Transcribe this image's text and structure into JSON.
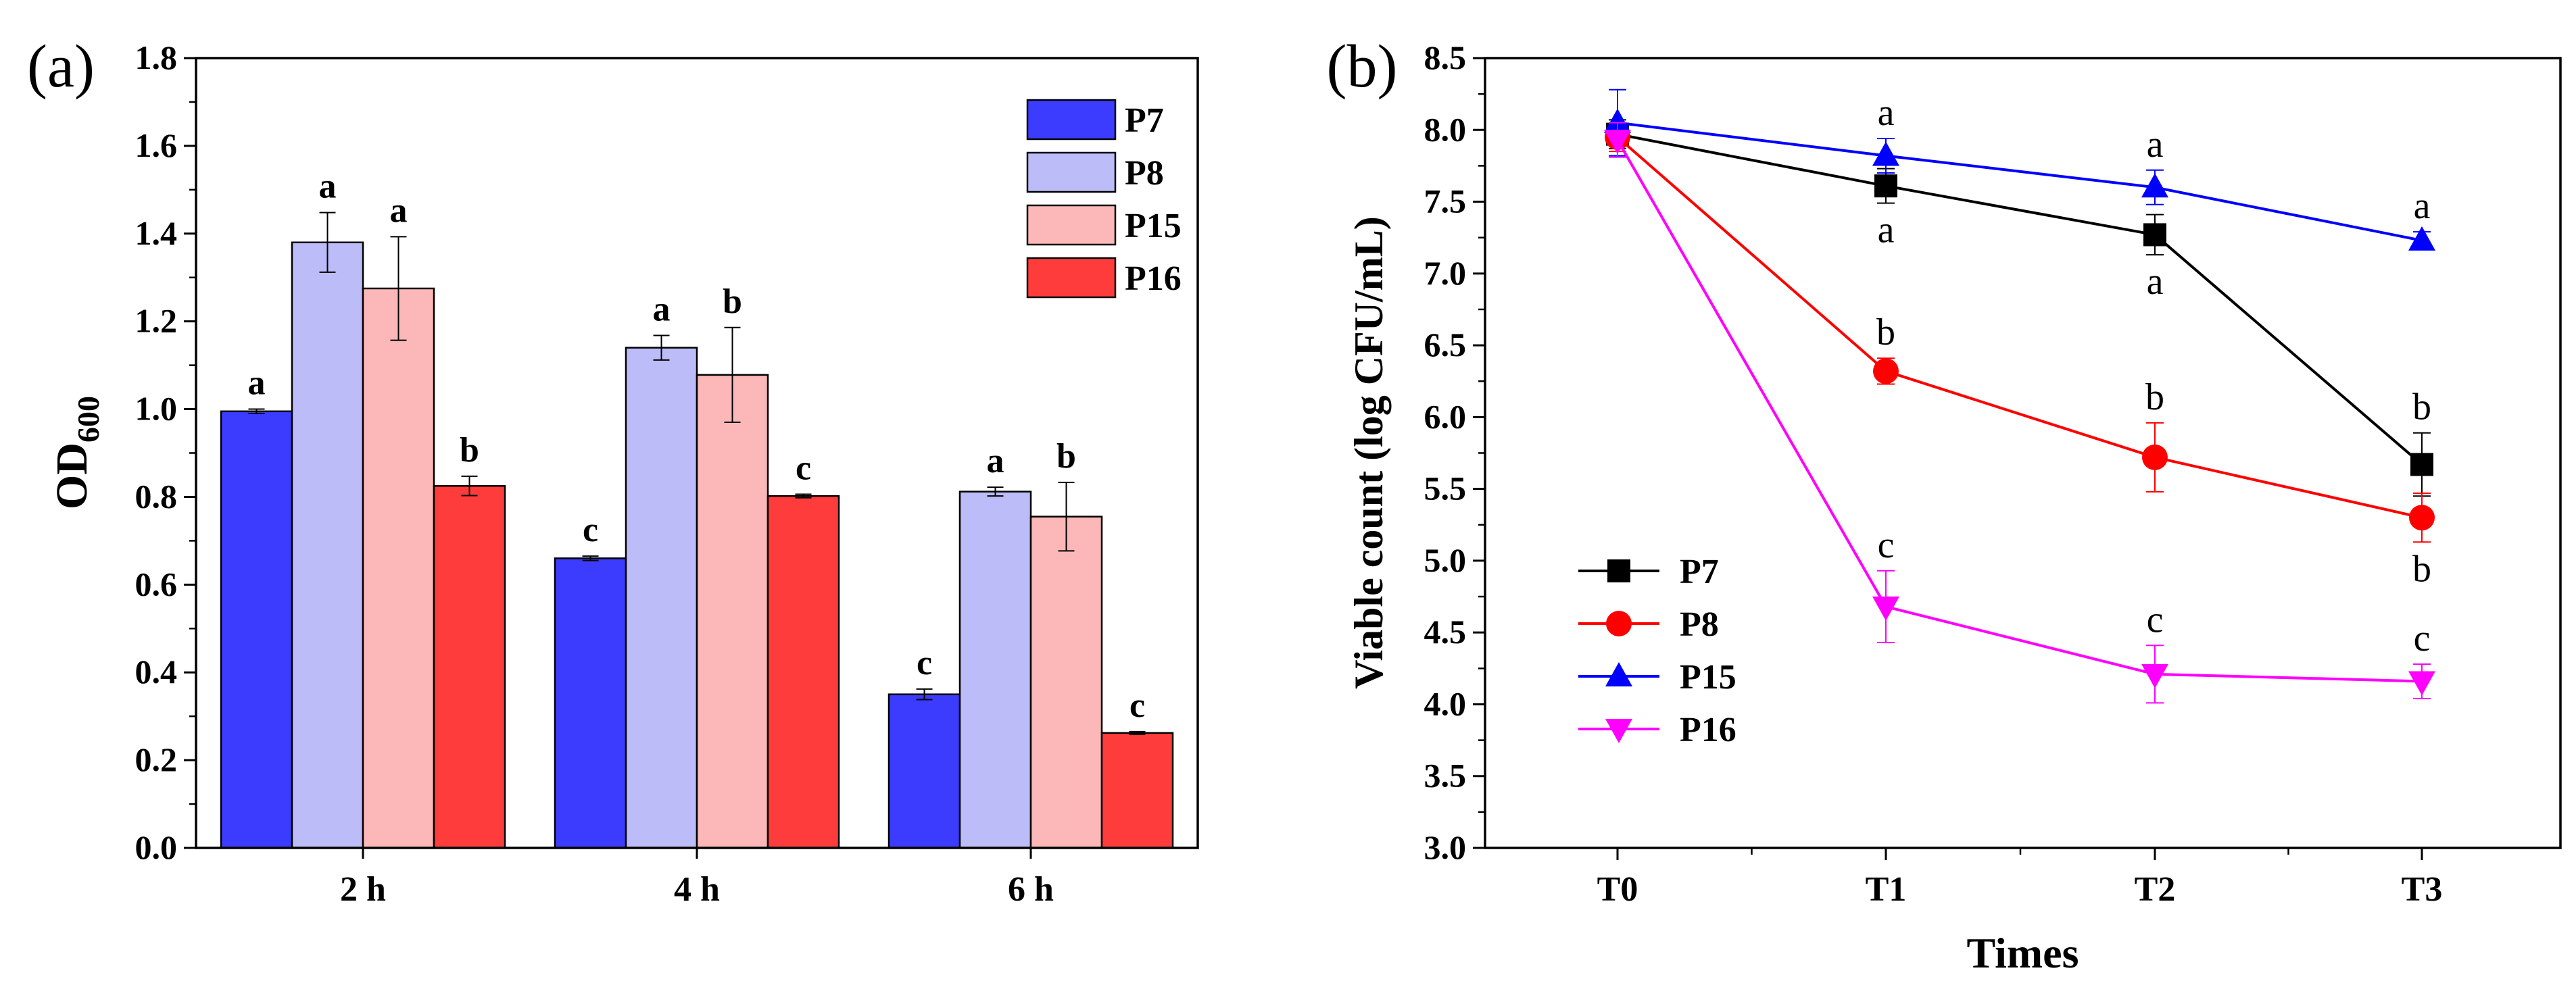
{
  "chart_data": [
    {
      "panel_label": "(a)",
      "type": "bar",
      "categories": [
        "2 h",
        "4 h",
        "6 h"
      ],
      "ylabel_main": "OD",
      "ylabel_sub": "600",
      "ylim": [
        0,
        1.8
      ],
      "yticks": [
        "0.0",
        "0.2",
        "0.4",
        "0.6",
        "0.8",
        "1.0",
        "1.2",
        "1.4",
        "1.6",
        "1.8"
      ],
      "series": [
        {
          "name": "P7",
          "color": "#3c3cff",
          "values": [
            0.995,
            0.66,
            0.35
          ],
          "errors": [
            0.005,
            0.005,
            0.012
          ],
          "labels": [
            "a",
            "c",
            "c"
          ]
        },
        {
          "name": "P8",
          "color": "#bcbcf8",
          "values": [
            1.38,
            1.14,
            0.812
          ],
          "errors": [
            0.068,
            0.028,
            0.01
          ],
          "labels": [
            "a",
            "a",
            "a"
          ]
        },
        {
          "name": "P15",
          "color": "#fcb8b8",
          "values": [
            1.275,
            1.078,
            0.755
          ],
          "errors": [
            0.118,
            0.108,
            0.078
          ],
          "labels": [
            "a",
            "b",
            "b"
          ]
        },
        {
          "name": "P16",
          "color": "#ff3c3c",
          "values": [
            0.825,
            0.802,
            0.262
          ],
          "errors": [
            0.022,
            0.004,
            0.003
          ],
          "labels": [
            "b",
            "c",
            "c"
          ]
        }
      ]
    },
    {
      "panel_label": "(b)",
      "type": "line",
      "x": [
        "T0",
        "T1",
        "T2",
        "T3"
      ],
      "xlabel": "Times",
      "ylabel": "Viable count (log CFU/mL)",
      "ylim": [
        3.0,
        8.5
      ],
      "yticks": [
        "3.0",
        "3.5",
        "4.0",
        "4.5",
        "5.0",
        "5.5",
        "6.0",
        "6.5",
        "7.0",
        "7.5",
        "8.0",
        "8.5"
      ],
      "series": [
        {
          "name": "P7",
          "color": "#000000",
          "marker": "square",
          "values": [
            7.97,
            7.61,
            7.27,
            5.67
          ],
          "errors": [
            0.1,
            0.12,
            0.14,
            0.22
          ],
          "labels": [
            "",
            "a",
            "a",
            "b"
          ],
          "label_pos": [
            "",
            "below",
            "below",
            "above"
          ]
        },
        {
          "name": "P8",
          "color": "#ff0000",
          "marker": "circle",
          "values": [
            7.95,
            6.32,
            5.72,
            5.3
          ],
          "errors": [
            0.1,
            0.09,
            0.24,
            0.17
          ],
          "labels": [
            "",
            "b",
            "b",
            "b"
          ],
          "label_pos": [
            "",
            "above",
            "above",
            "below"
          ]
        },
        {
          "name": "P15",
          "color": "#0000ff",
          "marker": "triangle",
          "values": [
            8.05,
            7.82,
            7.6,
            7.23
          ],
          "errors": [
            0.23,
            0.12,
            0.12,
            0.06
          ],
          "labels": [
            "",
            "a",
            "",
            "a"
          ],
          "label_pos": [
            "",
            "above",
            "",
            "above"
          ]
        },
        {
          "name": "P16",
          "color": "#ff00ff",
          "marker": "triangle-down",
          "values": [
            7.93,
            4.68,
            4.21,
            4.16
          ],
          "errors": [
            0.12,
            0.25,
            0.2,
            0.12
          ],
          "labels": [
            "",
            "c",
            "c",
            "c"
          ],
          "label_pos": [
            "",
            "above",
            "above",
            "above"
          ]
        }
      ],
      "extra_labels": [
        {
          "series": "P15",
          "index": 2,
          "text": "a",
          "pos": "above"
        }
      ]
    }
  ]
}
